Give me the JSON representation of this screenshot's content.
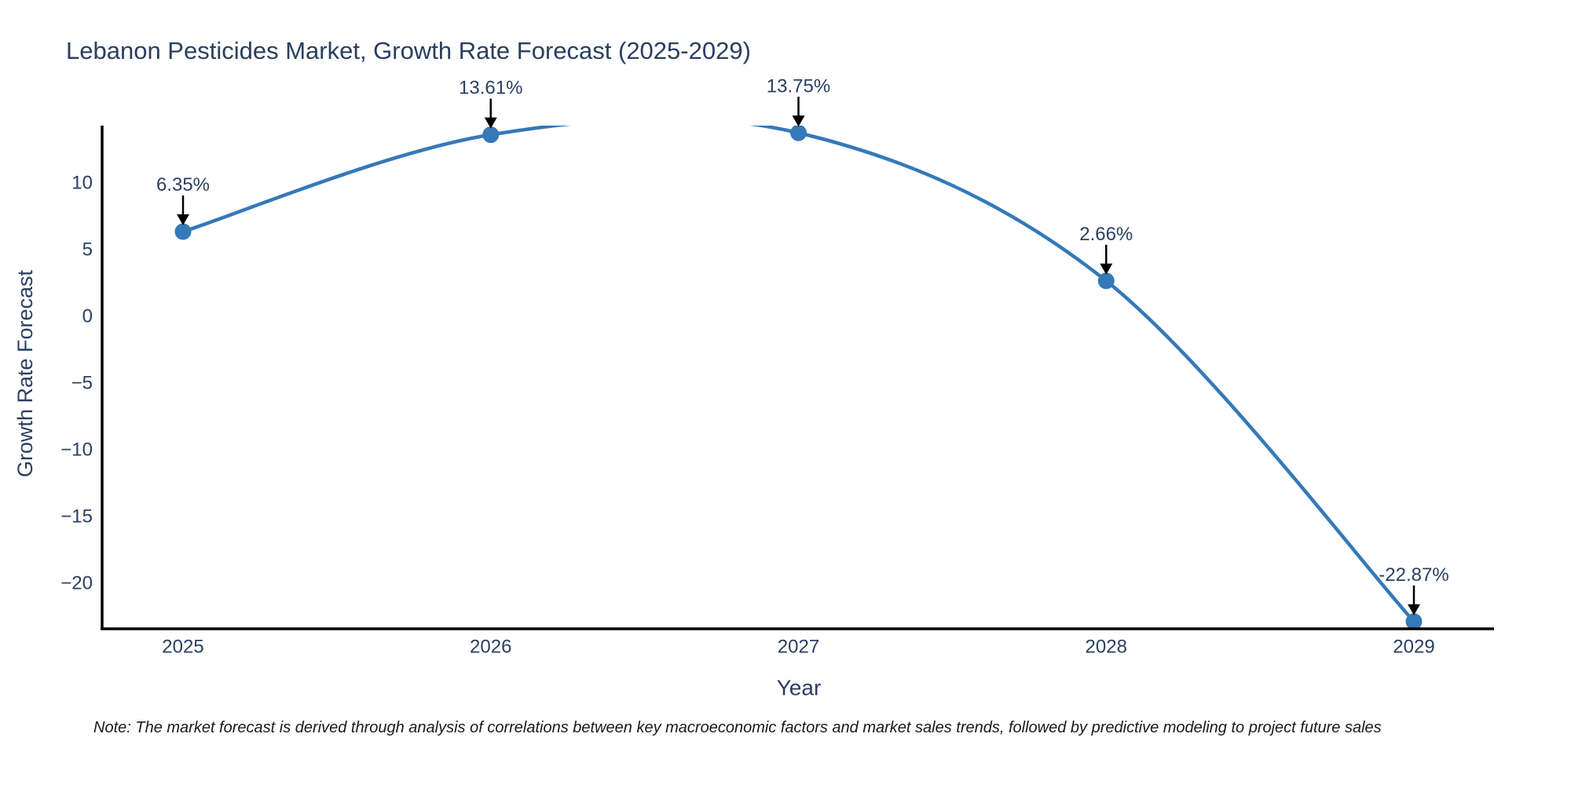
{
  "title": "Lebanon Pesticides Market, Growth Rate Forecast (2025-2029)",
  "note": "Note: The market forecast is derived through analysis of correlations between key macroeconomic factors and market sales trends, followed by predictive modeling to project future sales",
  "colors": {
    "line": "#3579b8",
    "marker": "#3579b8",
    "text": "#2a3f5f",
    "axis_line": "#000000",
    "arrow": "#000000",
    "note_text": "#1a1a1a",
    "background": "#ffffff"
  },
  "chart_data": {
    "type": "line",
    "line_shape": "spline",
    "title": "Lebanon Pesticides Market, Growth Rate Forecast (2025-2029)",
    "xlabel": "Year",
    "ylabel": "Growth Rate Forecast",
    "x": [
      2025,
      2026,
      2027,
      2028,
      2029
    ],
    "values": [
      6.35,
      13.61,
      13.75,
      2.66,
      -22.87
    ],
    "point_labels": [
      "6.35%",
      "13.61%",
      "13.75%",
      "2.66%",
      "-22.87%"
    ],
    "x_tick_labels": [
      "2025",
      "2026",
      "2027",
      "2028",
      "2029"
    ],
    "y_ticks": [
      10,
      5,
      0,
      -5,
      -10,
      -15,
      -20
    ],
    "y_tick_labels": [
      "10",
      "5",
      "0",
      "−5",
      "−10",
      "−15",
      "−20"
    ],
    "ylim": [
      -23.4,
      14.3
    ],
    "grid": false,
    "legend": "none",
    "annotations_have_arrows": true
  }
}
